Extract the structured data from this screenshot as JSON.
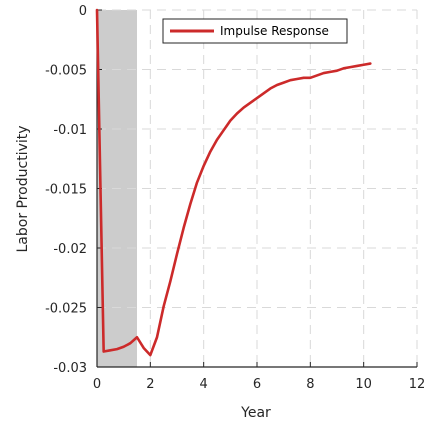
{
  "chart_data": {
    "type": "line",
    "xlabel": "Year",
    "ylabel": "Labor Productivity",
    "xlim": [
      0,
      12
    ],
    "ylim": [
      -0.03,
      0
    ],
    "xticks": [
      0,
      2,
      4,
      6,
      8,
      10,
      12
    ],
    "xtick_labels": [
      "0",
      "2",
      "4",
      "6",
      "8",
      "10",
      "12"
    ],
    "yticks": [
      0,
      -0.005,
      -0.01,
      -0.015,
      -0.02,
      -0.025,
      -0.03
    ],
    "ytick_labels": [
      "0",
      "-0.005",
      "-0.01",
      "-0.015",
      "-0.02",
      "-0.025",
      "-0.03"
    ],
    "grid": true,
    "legend_position": "top-right",
    "shaded_region": {
      "x": [
        0,
        1.5
      ],
      "color": "#cccccc"
    },
    "series": [
      {
        "name": "Impulse Response",
        "color": "#cc2a2a",
        "x": [
          0,
          0.25,
          0.5,
          0.75,
          1.0,
          1.25,
          1.5,
          1.75,
          2.0,
          2.25,
          2.5,
          2.75,
          3.0,
          3.25,
          3.5,
          3.75,
          4.0,
          4.25,
          4.5,
          4.75,
          5.0,
          5.25,
          5.5,
          5.75,
          6.0,
          6.25,
          6.5,
          6.75,
          7.0,
          7.25,
          7.5,
          7.75,
          8.0,
          8.25,
          8.5,
          8.75,
          9.0,
          9.25,
          9.5,
          9.75,
          10.0,
          10.25
        ],
        "y": [
          0,
          -0.0287,
          -0.0286,
          -0.0285,
          -0.0283,
          -0.028,
          -0.0275,
          -0.0284,
          -0.029,
          -0.0275,
          -0.0249,
          -0.0228,
          -0.0205,
          -0.0183,
          -0.0163,
          -0.0145,
          -0.0131,
          -0.0119,
          -0.0109,
          -0.0101,
          -0.0093,
          -0.0087,
          -0.0082,
          -0.0078,
          -0.0074,
          -0.007,
          -0.0066,
          -0.0063,
          -0.0061,
          -0.0059,
          -0.0058,
          -0.0057,
          -0.0057,
          -0.0055,
          -0.0053,
          -0.0052,
          -0.0051,
          -0.0049,
          -0.0048,
          -0.0047,
          -0.0046,
          -0.0045
        ]
      }
    ]
  }
}
